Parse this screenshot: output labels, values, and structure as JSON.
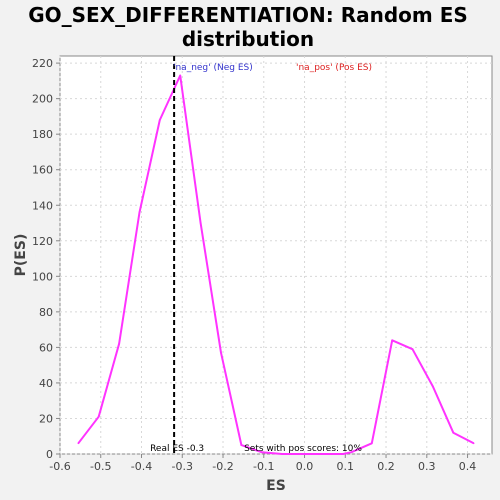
{
  "chart_data": {
    "type": "line",
    "title_lines": [
      "GO_SEX_DIFFERENTIATION: Random ES",
      "distribution"
    ],
    "xlabel": "ES",
    "ylabel": "P(ES)",
    "xlim": [
      -0.6,
      0.46
    ],
    "ylim": [
      0,
      224
    ],
    "xticks": [
      -0.6,
      -0.5,
      -0.4,
      -0.3,
      -0.2,
      -0.1,
      0.0,
      0.1,
      0.2,
      0.3,
      0.4
    ],
    "xtick_labels": [
      "-0.6",
      "-0.5",
      "-0.4",
      "-0.3",
      "-0.2",
      "-0.1",
      "0.0",
      "0.1",
      "0.2",
      "0.3",
      "0.4"
    ],
    "yticks": [
      0,
      20,
      40,
      60,
      80,
      100,
      120,
      140,
      160,
      180,
      200,
      220
    ],
    "ytick_labels": [
      "0",
      "20",
      "40",
      "60",
      "80",
      "100",
      "120",
      "140",
      "160",
      "180",
      "200",
      "220"
    ],
    "grid": true,
    "series": [
      {
        "name": "Random ES distribution",
        "color": "#ff33ff",
        "x": [
          -0.555,
          -0.505,
          -0.455,
          -0.405,
          -0.355,
          -0.305,
          -0.255,
          -0.205,
          -0.155,
          -0.105,
          -0.055,
          -0.005,
          0.045,
          0.095,
          0.115,
          0.165,
          0.215,
          0.265,
          0.315,
          0.365,
          0.415
        ],
        "y": [
          6,
          21,
          62,
          136,
          188,
          213,
          130,
          57,
          5,
          1,
          0,
          0,
          0,
          0,
          1,
          6,
          64,
          59,
          38,
          12,
          6
        ]
      }
    ],
    "real_es": {
      "value": -0.32,
      "color": "#000000",
      "label": "Real ES -0.3"
    },
    "legend": [
      {
        "text": "'na_neg' (Neg ES)",
        "color": "#3333cc"
      },
      {
        "text": "'na_pos' (Pos ES)",
        "color": "#dd2222"
      }
    ],
    "annotation_sets": "Sets with pos scores: 10%"
  }
}
